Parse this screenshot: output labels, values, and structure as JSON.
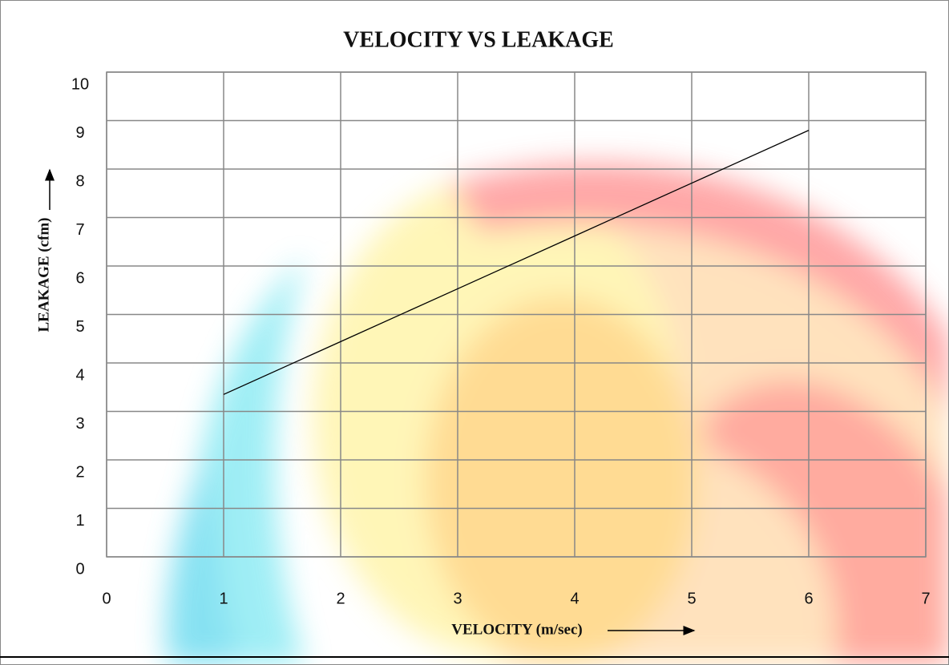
{
  "chart_data": {
    "type": "line",
    "title": "VELOCITY VS LEAKAGE",
    "x_label": "VELOCITY (m/sec)",
    "y_label": "LEAKAGE (cfm)",
    "x": [
      1,
      2,
      3,
      4,
      5,
      6
    ],
    "series": [
      {
        "name": "Leakage",
        "color": "#000000",
        "values": [
          3.35,
          4.44,
          5.53,
          6.62,
          7.71,
          8.8
        ]
      }
    ],
    "xlim": [
      0,
      7
    ],
    "xticks": [
      0,
      1,
      2,
      3,
      4,
      5,
      6,
      7
    ],
    "ylim": [
      0,
      10
    ],
    "yticks": [
      0,
      1,
      2,
      3,
      4,
      5,
      6,
      7,
      8,
      9,
      10
    ],
    "grid": true
  }
}
